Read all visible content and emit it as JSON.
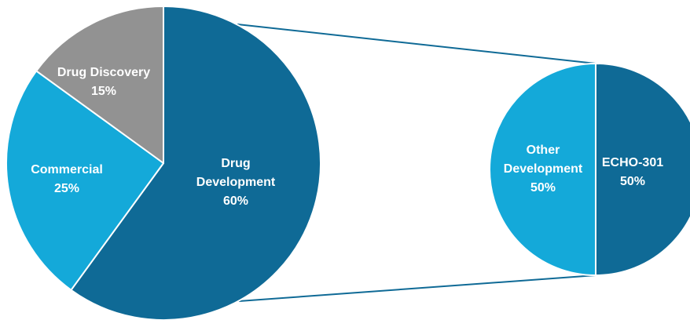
{
  "chart_data": [
    {
      "type": "pie",
      "slices": [
        {
          "label": "Drug Development",
          "value": 60,
          "display": "60%",
          "color": "#0f6a96"
        },
        {
          "label": "Commercial",
          "value": 25,
          "display": "25%",
          "color": "#14a9d9"
        },
        {
          "label": "Drug Discovery",
          "value": 15,
          "display": "15%",
          "color": "#929292"
        }
      ]
    },
    {
      "type": "pie",
      "breakdown_of": "Drug Development",
      "slices": [
        {
          "label": "ECHO-301",
          "value": 50,
          "display": "50%",
          "color": "#0f6a96"
        },
        {
          "label": "Other Development",
          "value": 50,
          "display": "50%",
          "color": "#14a9d9"
        }
      ]
    }
  ],
  "colors": {
    "connector": "#0f6a96",
    "divider": "#ffffff"
  }
}
